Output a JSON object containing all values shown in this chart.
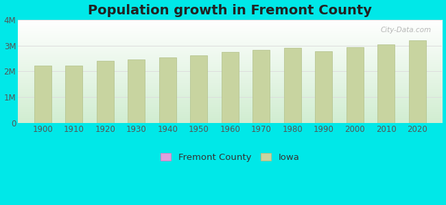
{
  "title": "Population growth in Fremont County",
  "years": [
    1900,
    1910,
    1920,
    1930,
    1940,
    1950,
    1960,
    1970,
    1980,
    1990,
    2000,
    2010,
    2020
  ],
  "iowa_values": [
    2231853,
    2224771,
    2404021,
    2470939,
    2538268,
    2621073,
    2757537,
    2824376,
    2913808,
    2776755,
    2926324,
    3046355,
    3190369
  ],
  "bar_color_iowa": "#c8d4a0",
  "bar_color_iowa_edge": "#b0bf88",
  "bar_color_fremont": "#dda0dd",
  "bar_color_fremont_edge": "#c888c8",
  "background_outer": "#00e8e8",
  "grid_color": "#dddddd",
  "title_fontsize": 14,
  "tick_fontsize": 8.5,
  "legend_fontsize": 9.5,
  "ylim": [
    0,
    4000000
  ],
  "yticks": [
    0,
    1000000,
    2000000,
    3000000,
    4000000
  ],
  "ytick_labels": [
    "0",
    "1M",
    "2M",
    "3M",
    "4M"
  ],
  "xlim_left": 1892,
  "xlim_right": 2028,
  "bar_width": 5.5,
  "watermark": "City-Data.com"
}
